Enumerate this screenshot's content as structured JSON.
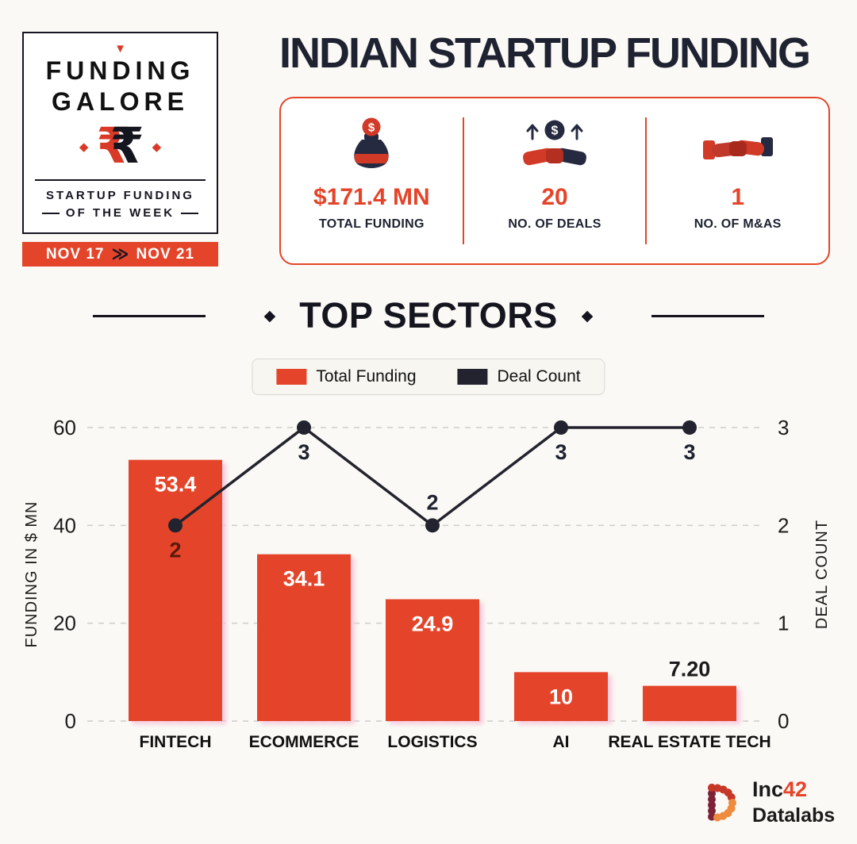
{
  "colors": {
    "accent": "#E4452A",
    "dark": "#1E2130",
    "bar_glow": "#F5C6DC",
    "background": "#FBF9F5"
  },
  "badge": {
    "triangle": "▼",
    "title_line1": "FUNDING",
    "title_line2": "GALORE",
    "diamond": "◆",
    "rupee_red": "₹",
    "rupee_black": "₹",
    "subtitle_line1": "STARTUP FUNDING",
    "subtitle_line2": "OF THE WEEK",
    "date_from": "NOV 17",
    "date_separator": "≫",
    "date_to": "NOV 21"
  },
  "header": {
    "title": "INDIAN STARTUP FUNDING"
  },
  "stats": [
    {
      "icon": "money-bag-icon",
      "value": "$171.4 MN",
      "label": "TOTAL FUNDING"
    },
    {
      "icon": "deals-handshake-icon",
      "value": "20",
      "label": "NO. OF DEALS"
    },
    {
      "icon": "handshake-icon",
      "value": "1",
      "label": "NO. OF M&AS"
    }
  ],
  "section": {
    "title": "TOP SECTORS",
    "diamond": "◆"
  },
  "legend": {
    "items": [
      {
        "label": "Total Funding",
        "color": "#E4452A"
      },
      {
        "label": "Deal Count",
        "color": "#23232F"
      }
    ]
  },
  "chart_data": {
    "type": "bar",
    "subtype": "bar-line-combo",
    "categories": [
      "FINTECH",
      "ECOMMERCE",
      "LOGISTICS",
      "AI",
      "REAL ESTATE TECH"
    ],
    "series": [
      {
        "name": "Total Funding",
        "mark": "bar",
        "color": "#E4452A",
        "values": [
          53.4,
          34.1,
          24.9,
          10,
          7.2
        ],
        "labels": [
          "53.4",
          "34.1",
          "24.9",
          "10",
          "7.20"
        ]
      },
      {
        "name": "Deal Count",
        "mark": "line",
        "color": "#23232F",
        "values": [
          2,
          3,
          2,
          3,
          3
        ],
        "labels": [
          "2",
          "3",
          "2",
          "3",
          "3"
        ],
        "label_positions": [
          "below",
          "below",
          "above",
          "below",
          "below"
        ],
        "label_colors": [
          "#5A190B",
          "#1E2130",
          "#1E2130",
          "#1E2130",
          "#1E2130"
        ]
      }
    ],
    "left_axis": {
      "title": "FUNDING IN $ MN",
      "ticks": [
        0,
        20,
        40,
        60
      ],
      "max": 60
    },
    "right_axis": {
      "title": "DEAL COUNT",
      "ticks": [
        0,
        1,
        2,
        3
      ],
      "max": 3
    },
    "grid": {
      "horizontal": true,
      "style": "dashed"
    },
    "legend_position": "top-center"
  },
  "footer": {
    "brand_name": "Inc",
    "brand_number": "42",
    "brand_sub": "Datalabs"
  }
}
